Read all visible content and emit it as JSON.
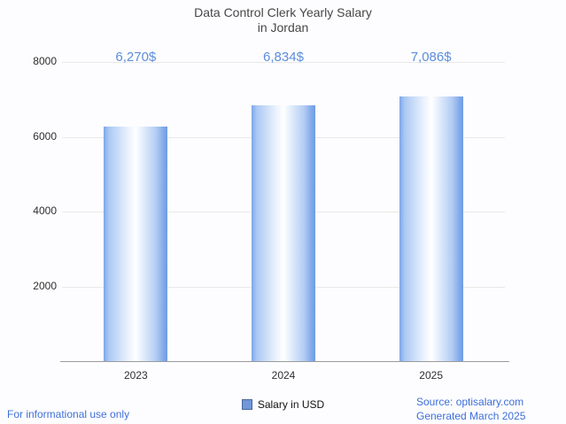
{
  "title": {
    "line1": "Data Control Clerk Yearly Salary",
    "line2": "in Jordan"
  },
  "chart_data": {
    "type": "bar",
    "title": "Data Control Clerk Yearly Salary in Jordan",
    "categories": [
      "2023",
      "2024",
      "2025"
    ],
    "values": [
      6270,
      6834,
      7086
    ],
    "value_labels": [
      "6,270$",
      "6,834$",
      "7,086$"
    ],
    "xlabel": "",
    "ylabel": "",
    "ylim": [
      0,
      8000
    ],
    "yticks": [
      2000,
      4000,
      6000,
      8000
    ],
    "grid": true,
    "legend": {
      "label": "Salary in USD",
      "position": "bottom-center"
    },
    "colors": {
      "bar": "#9ab8ec",
      "value_label": "#5b8dd9",
      "link_text": "#3f6fd8"
    }
  },
  "legend": {
    "label": "Salary in USD"
  },
  "footer": {
    "left": "For informational use only",
    "source": "Source: optisalary.com",
    "generated": "Generated March 2025"
  }
}
